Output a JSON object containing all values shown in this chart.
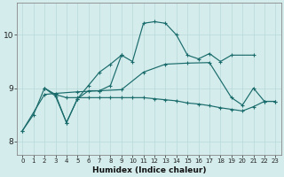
{
  "xlabel": "Humidex (Indice chaleur)",
  "xlim": [
    -0.5,
    23.5
  ],
  "ylim": [
    7.75,
    10.6
  ],
  "yticks": [
    8,
    9,
    10
  ],
  "xticks": [
    0,
    1,
    2,
    3,
    4,
    5,
    6,
    7,
    8,
    9,
    10,
    11,
    12,
    13,
    14,
    15,
    16,
    17,
    18,
    19,
    20,
    21,
    22,
    23
  ],
  "bg_color": "#d4ecec",
  "grid_color": "#b8d8d8",
  "line_color": "#1a6b6b",
  "lines": {
    "line1": {
      "x": [
        0,
        1,
        2,
        3,
        4,
        5,
        6,
        7,
        8,
        9,
        10,
        11,
        12,
        13,
        14,
        15,
        16,
        17,
        18,
        19,
        21
      ],
      "y": [
        8.2,
        8.5,
        9.0,
        8.85,
        8.35,
        8.8,
        8.95,
        8.95,
        9.05,
        9.62,
        9.5,
        10.22,
        10.25,
        10.22,
        10.0,
        9.62,
        9.55,
        9.65,
        9.5,
        9.62,
        9.62
      ]
    },
    "line2": {
      "x": [
        0,
        2,
        3,
        5,
        7,
        9,
        11,
        13,
        15,
        17,
        19,
        20,
        21,
        22,
        23
      ],
      "y": [
        8.2,
        8.88,
        8.9,
        8.93,
        8.95,
        8.97,
        9.3,
        9.45,
        9.47,
        9.48,
        8.82,
        8.68,
        9.0,
        8.75,
        8.75
      ]
    },
    "line3": {
      "x": [
        2,
        3,
        4,
        5,
        6,
        7,
        8,
        9
      ],
      "y": [
        9.0,
        8.88,
        8.35,
        8.8,
        9.05,
        9.3,
        9.45,
        9.62
      ]
    },
    "line4": {
      "x": [
        3,
        4,
        5,
        6,
        7,
        8,
        9,
        10,
        11,
        12,
        13,
        14,
        15,
        16,
        17,
        18,
        19,
        20,
        21,
        22,
        23
      ],
      "y": [
        8.88,
        8.82,
        8.82,
        8.82,
        8.82,
        8.82,
        8.82,
        8.82,
        8.82,
        8.8,
        8.78,
        8.76,
        8.72,
        8.7,
        8.67,
        8.63,
        8.6,
        8.57,
        8.65,
        8.75,
        8.75
      ]
    }
  }
}
